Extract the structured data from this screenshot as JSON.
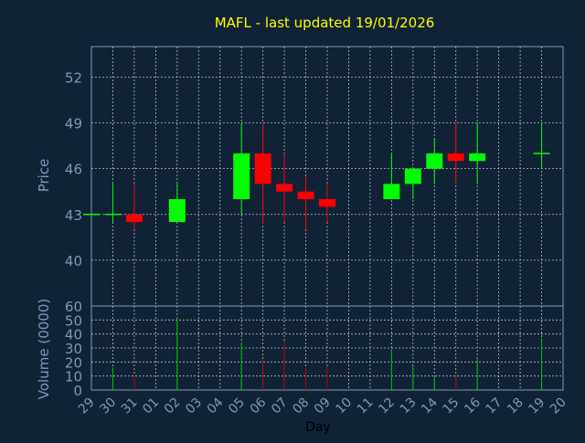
{
  "chart_data": {
    "type": "candlestick",
    "title": "MAFL - last updated 19/01/2026",
    "xlabel": "Day",
    "price_axis": {
      "label": "Price",
      "ylim": [
        37,
        54
      ],
      "ticks": [
        "40",
        "43",
        "46",
        "49",
        "52"
      ]
    },
    "volume_axis": {
      "label": "Volume (0000)",
      "ylim": [
        0,
        60
      ],
      "ticks": [
        "0",
        "10",
        "20",
        "30",
        "40",
        "50",
        "60"
      ]
    },
    "grid": true,
    "x_ticks": [
      "29",
      "30",
      "31",
      "01",
      "02",
      "03",
      "04",
      "05",
      "06",
      "07",
      "08",
      "09",
      "10",
      "11",
      "12",
      "13",
      "14",
      "15",
      "16",
      "17",
      "18",
      "19",
      "20"
    ],
    "candles": [
      {
        "day": "29",
        "open": 43.0,
        "close": 43.0,
        "high": 43.0,
        "low": 43.0,
        "volume": 0
      },
      {
        "day": "30",
        "open": 43.0,
        "close": 43.0,
        "high": 45.0,
        "low": 42.5,
        "volume": 16
      },
      {
        "day": "31",
        "open": 43.0,
        "close": 42.5,
        "high": 45.0,
        "low": 42.0,
        "volume": 11
      },
      {
        "day": "02",
        "open": 42.5,
        "close": 44.0,
        "high": 45.0,
        "low": 42.5,
        "volume": 52
      },
      {
        "day": "05",
        "open": 44.0,
        "close": 47.0,
        "high": 49.0,
        "low": 43.0,
        "volume": 34
      },
      {
        "day": "06",
        "open": 47.0,
        "close": 45.0,
        "high": 49.0,
        "low": 42.4,
        "volume": 21
      },
      {
        "day": "07",
        "open": 45.0,
        "close": 44.5,
        "high": 47.0,
        "low": 42.5,
        "volume": 35
      },
      {
        "day": "08",
        "open": 44.5,
        "close": 44.0,
        "high": 45.5,
        "low": 42.0,
        "volume": 16
      },
      {
        "day": "09",
        "open": 44.0,
        "close": 43.5,
        "high": 45.0,
        "low": 42.5,
        "volume": 17
      },
      {
        "day": "12",
        "open": 44.0,
        "close": 45.0,
        "high": 47.0,
        "low": 44.0,
        "volume": 29
      },
      {
        "day": "13",
        "open": 45.0,
        "close": 46.0,
        "high": 46.0,
        "low": 44.0,
        "volume": 17
      },
      {
        "day": "14",
        "open": 46.0,
        "close": 47.0,
        "high": 48.0,
        "low": 45.0,
        "volume": 9
      },
      {
        "day": "15",
        "open": 47.0,
        "close": 46.5,
        "high": 49.0,
        "low": 45.0,
        "volume": 11
      },
      {
        "day": "16",
        "open": 46.5,
        "close": 47.0,
        "high": 49.0,
        "low": 45.0,
        "volume": 22
      },
      {
        "day": "19",
        "open": 47.0,
        "close": 47.0,
        "high": 49.0,
        "low": 46.0,
        "volume": 37
      }
    ],
    "colors": {
      "background": "#0f2236",
      "title": "#ffff00",
      "axis_text": "#7f99bb",
      "axis_line": "#7f99bb",
      "grid": "#b6c2d0",
      "up": "#00ff00",
      "down": "#ff0000",
      "flat": "#00ff00",
      "up_volume": "#00c000",
      "down_volume": "#c00000"
    }
  }
}
